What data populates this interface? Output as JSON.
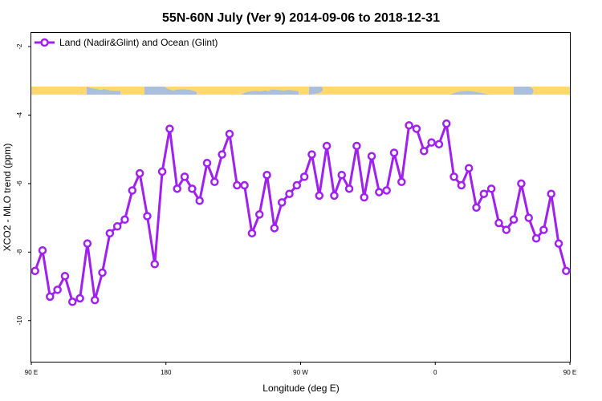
{
  "chart_data": {
    "type": "line",
    "title": "55N-60N July (Ver 9)   2014-09-06 to 2018-12-31",
    "xlabel": "Longitude (deg E)",
    "ylabel": "XCO2 - MLO trend (ppm)",
    "xlim": [
      90,
      450
    ],
    "ylim": [
      -11.2,
      -1.6
    ],
    "x_ticks": [
      {
        "value": 90,
        "label": "90 E"
      },
      {
        "value": 180,
        "label": "180"
      },
      {
        "value": 270,
        "label": "90 W"
      },
      {
        "value": 360,
        "label": "0"
      },
      {
        "value": 450,
        "label": "90 E"
      },
      {
        "value": 540,
        "label": "180"
      }
    ],
    "y_ticks": [
      {
        "value": -2,
        "label": "-2"
      },
      {
        "value": -4,
        "label": "-4"
      },
      {
        "value": -6,
        "label": "-6"
      },
      {
        "value": -8,
        "label": "-8"
      },
      {
        "value": -10,
        "label": "-10"
      }
    ],
    "legend_position": "top-left",
    "series": [
      {
        "name": "Land (Nadir&Glint) and Ocean (Glint)",
        "color": "#a020f0",
        "x": [
          92.5,
          97.5,
          102.5,
          107.5,
          112.5,
          117.5,
          122.5,
          127.5,
          132.5,
          137.5,
          142.5,
          147.5,
          152.5,
          157.5,
          162.5,
          167.5,
          172.5,
          177.5,
          182.5,
          187.5,
          192.5,
          197.5,
          202.5,
          207.5,
          212.5,
          217.5,
          222.5,
          227.5,
          232.5,
          237.5,
          242.5,
          247.5,
          252.5,
          257.5,
          262.5,
          267.5,
          272.5,
          277.5,
          282.5,
          287.5,
          292.5,
          297.5,
          302.5,
          307.5,
          312.5,
          317.5,
          322.5,
          327.5,
          332.5,
          337.5,
          342.5,
          347.5,
          352.5,
          357.5,
          362.5,
          367.5,
          372.5,
          377.5,
          382.5,
          387.5,
          392.5,
          397.5,
          402.5,
          407.5,
          412.5,
          417.5,
          422.5,
          427.5,
          432.5,
          437.5,
          442.5,
          447.5
        ],
        "values": [
          -8.55,
          -7.95,
          -9.3,
          -9.1,
          -8.7,
          -9.45,
          -9.35,
          -7.75,
          -9.4,
          -8.6,
          -7.45,
          -7.25,
          -7.05,
          -6.2,
          -5.7,
          -6.95,
          -8.35,
          -5.65,
          -4.4,
          -6.15,
          -5.8,
          -6.15,
          -6.5,
          -5.4,
          -5.95,
          -5.15,
          -4.55,
          -6.05,
          -6.05,
          -7.45,
          -6.9,
          -5.75,
          -7.3,
          -6.55,
          -6.3,
          -6.05,
          -5.8,
          -5.15,
          -6.35,
          -4.9,
          -6.35,
          -5.75,
          -6.15,
          -4.9,
          -6.4,
          -5.2,
          -6.25,
          -6.2,
          -5.1,
          -5.95,
          -4.3,
          -4.4,
          -5.05,
          -4.8,
          -4.85,
          -4.25,
          -5.8,
          -6.05,
          -5.55,
          -6.7,
          -6.3,
          -6.15,
          -7.15,
          -7.35,
          -7.05,
          -6,
          -7,
          -7.6,
          -7.35,
          -6.3,
          -7.75,
          -8.55
        ]
      }
    ]
  }
}
